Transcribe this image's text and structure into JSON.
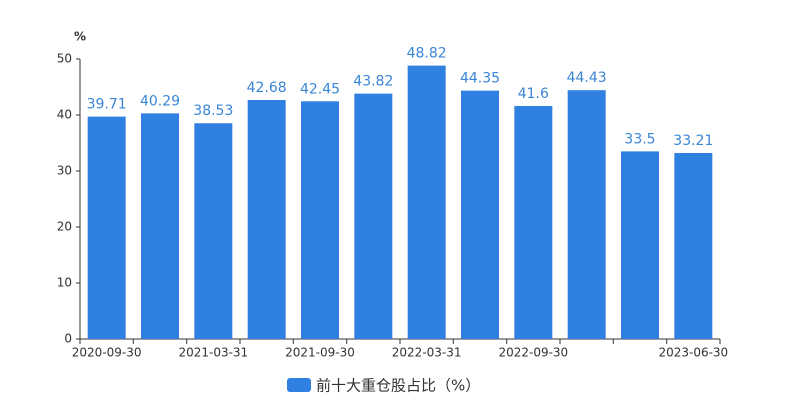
{
  "chart_data": {
    "type": "bar",
    "y_unit": "%",
    "categories": [
      "2020-09-30",
      null,
      "2021-03-31",
      null,
      "2021-09-30",
      null,
      "2022-03-31",
      null,
      "2022-09-30",
      null,
      null,
      "2023-06-30"
    ],
    "series": [
      {
        "name": "前十大重仓股占比（%）",
        "color": "#2f80e0",
        "values": [
          39.71,
          40.29,
          38.53,
          42.68,
          42.45,
          43.82,
          48.82,
          44.35,
          41.6,
          44.43,
          33.5,
          33.21
        ]
      }
    ],
    "ylim": [
      0,
      50
    ],
    "yticks": [
      0,
      10,
      20,
      30,
      40,
      50
    ]
  }
}
